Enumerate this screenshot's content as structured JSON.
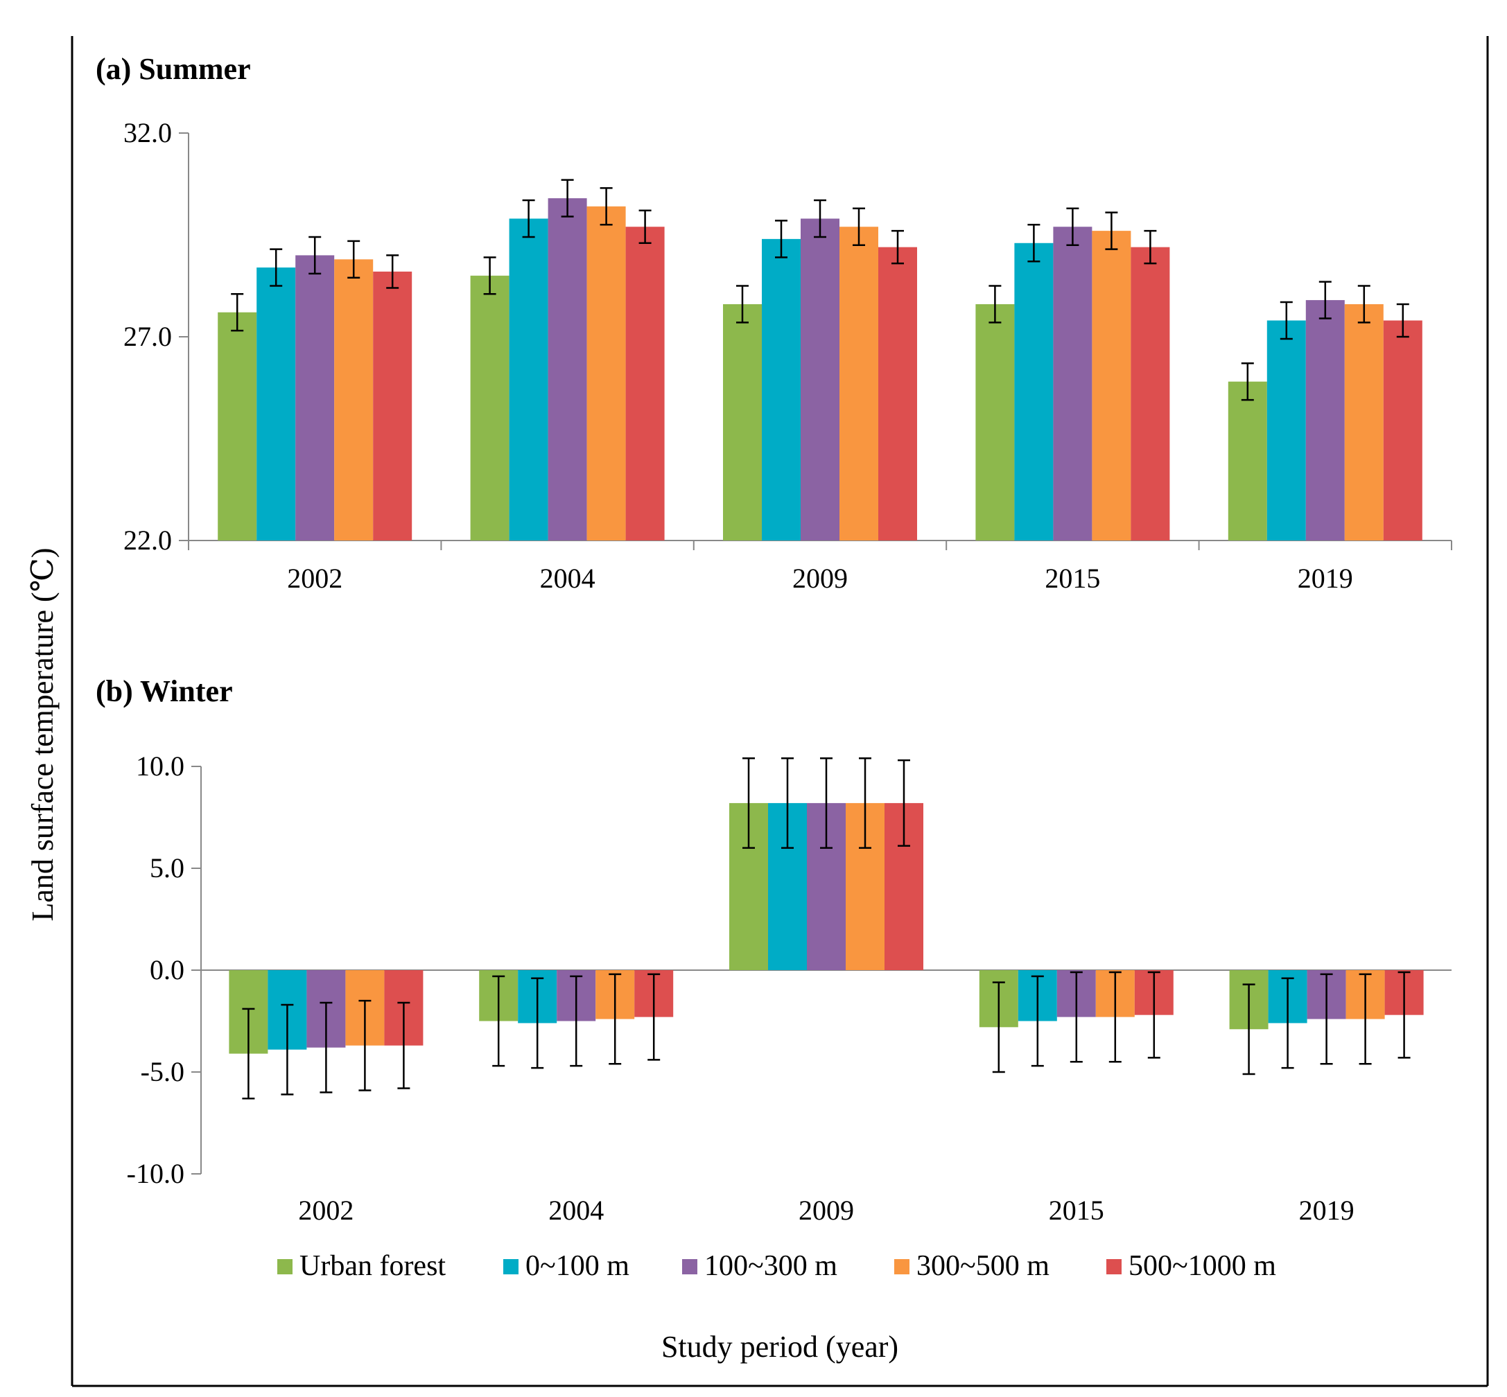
{
  "figure": {
    "ylabel": "Land surface temperature (℃)",
    "xlabel": "Study period (year)"
  },
  "legend": [
    {
      "name": "Urban forest",
      "color": "#8db84c"
    },
    {
      "name": "0~100 m",
      "color": "#00acc6"
    },
    {
      "name": "100~300 m",
      "color": "#8b63a3"
    },
    {
      "name": "300~500 m",
      "color": "#f99640"
    },
    {
      "name": "500~1000 m",
      "color": "#dd4f4f"
    }
  ],
  "chart_data": [
    {
      "type": "bar",
      "title": "(a) Summer",
      "categories": [
        "2002",
        "2004",
        "2009",
        "2015",
        "2019"
      ],
      "ylim": [
        22.0,
        32.0
      ],
      "yticks": [
        22.0,
        27.0,
        32.0
      ],
      "ytick_labels": [
        "22.0",
        "27.0",
        "32.0"
      ],
      "series": [
        {
          "name": "Urban forest",
          "values": [
            27.6,
            28.5,
            27.8,
            27.8,
            25.9
          ],
          "errors": [
            0.45,
            0.45,
            0.45,
            0.45,
            0.45
          ]
        },
        {
          "name": "0~100 m",
          "values": [
            28.7,
            29.9,
            29.4,
            29.3,
            27.4
          ],
          "errors": [
            0.45,
            0.45,
            0.45,
            0.45,
            0.45
          ]
        },
        {
          "name": "100~300 m",
          "values": [
            29.0,
            30.4,
            29.9,
            29.7,
            27.9
          ],
          "errors": [
            0.45,
            0.45,
            0.45,
            0.45,
            0.45
          ]
        },
        {
          "name": "300~500 m",
          "values": [
            28.9,
            30.2,
            29.7,
            29.6,
            27.8
          ],
          "errors": [
            0.45,
            0.45,
            0.45,
            0.45,
            0.45
          ]
        },
        {
          "name": "500~1000 m",
          "values": [
            28.6,
            29.7,
            29.2,
            29.2,
            27.4
          ],
          "errors": [
            0.4,
            0.4,
            0.4,
            0.4,
            0.4
          ]
        }
      ]
    },
    {
      "type": "bar",
      "title": "(b) Winter",
      "categories": [
        "2002",
        "2004",
        "2009",
        "2015",
        "2019"
      ],
      "ylim": [
        -10.0,
        10.0
      ],
      "yticks": [
        -10.0,
        -5.0,
        0.0,
        5.0,
        10.0
      ],
      "ytick_labels": [
        "-10.0",
        "-5.0",
        "0.0",
        "5.0",
        "10.0"
      ],
      "series": [
        {
          "name": "Urban forest",
          "values": [
            -4.1,
            -2.5,
            8.2,
            -2.8,
            -2.9
          ],
          "errors": [
            2.2,
            2.2,
            2.2,
            2.2,
            2.2
          ]
        },
        {
          "name": "0~100 m",
          "values": [
            -3.9,
            -2.6,
            8.2,
            -2.5,
            -2.6
          ],
          "errors": [
            2.2,
            2.2,
            2.2,
            2.2,
            2.2
          ]
        },
        {
          "name": "100~300 m",
          "values": [
            -3.8,
            -2.5,
            8.2,
            -2.3,
            -2.4
          ],
          "errors": [
            2.2,
            2.2,
            2.2,
            2.2,
            2.2
          ]
        },
        {
          "name": "300~500 m",
          "values": [
            -3.7,
            -2.4,
            8.2,
            -2.3,
            -2.4
          ],
          "errors": [
            2.2,
            2.2,
            2.2,
            2.2,
            2.2
          ]
        },
        {
          "name": "500~1000 m",
          "values": [
            -3.7,
            -2.3,
            8.2,
            -2.2,
            -2.2
          ],
          "errors": [
            2.1,
            2.1,
            2.1,
            2.1,
            2.1
          ]
        }
      ]
    }
  ]
}
